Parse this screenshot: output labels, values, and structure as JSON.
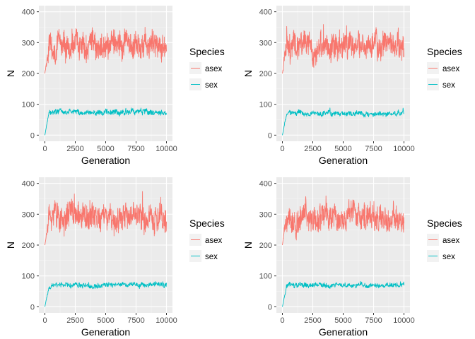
{
  "chart_data": [
    {
      "type": "line",
      "xlabel": "Generation",
      "ylabel": "N",
      "xlim": [
        0,
        10000
      ],
      "ylim": [
        0,
        400
      ],
      "xticks": [
        0,
        2500,
        5000,
        7500,
        10000
      ],
      "xtick_labels": [
        "0",
        "2500",
        "5000",
        "7500",
        "10000"
      ],
      "yticks": [
        0,
        100,
        200,
        300,
        400
      ],
      "ytick_labels": [
        "0",
        "100",
        "200",
        "300",
        "400"
      ],
      "grid": true,
      "legend": {
        "title": "Species",
        "position": "right"
      },
      "series": [
        {
          "name": "asex",
          "color": "#F8766D",
          "start": 200,
          "mean": 288,
          "amplitude": 30,
          "max": 398,
          "min": 205
        },
        {
          "name": "sex",
          "color": "#00BFC4",
          "start": 0,
          "mean": 75,
          "amplitude": 7,
          "max": 93,
          "min": 52
        }
      ]
    },
    {
      "type": "line",
      "xlabel": "Generation",
      "ylabel": "N",
      "xlim": [
        0,
        10000
      ],
      "ylim": [
        0,
        400
      ],
      "xticks": [
        0,
        2500,
        5000,
        7500,
        10000
      ],
      "xtick_labels": [
        "0",
        "2500",
        "5000",
        "7500",
        "10000"
      ],
      "yticks": [
        0,
        100,
        200,
        300,
        400
      ],
      "ytick_labels": [
        "0",
        "100",
        "200",
        "300",
        "400"
      ],
      "grid": true,
      "legend": {
        "title": "Species",
        "position": "right"
      },
      "series": [
        {
          "name": "asex",
          "color": "#F8766D",
          "start": 200,
          "mean": 288,
          "amplitude": 30,
          "max": 398,
          "min": 205
        },
        {
          "name": "sex",
          "color": "#00BFC4",
          "start": 0,
          "mean": 70,
          "amplitude": 6,
          "max": 90,
          "min": 55
        }
      ]
    },
    {
      "type": "line",
      "xlabel": "Generation",
      "ylabel": "N",
      "xlim": [
        0,
        10000
      ],
      "ylim": [
        0,
        400
      ],
      "xticks": [
        0,
        2500,
        5000,
        7500,
        10000
      ],
      "xtick_labels": [
        "0",
        "2500",
        "5000",
        "7500",
        "10000"
      ],
      "yticks": [
        0,
        100,
        200,
        300,
        400
      ],
      "ytick_labels": [
        "0",
        "100",
        "200",
        "300",
        "400"
      ],
      "grid": true,
      "legend": {
        "title": "Species",
        "position": "right"
      },
      "series": [
        {
          "name": "asex",
          "color": "#F8766D",
          "start": 200,
          "mean": 290,
          "amplitude": 30,
          "max": 395,
          "min": 210
        },
        {
          "name": "sex",
          "color": "#00BFC4",
          "start": 0,
          "mean": 70,
          "amplitude": 6,
          "max": 88,
          "min": 55
        }
      ]
    },
    {
      "type": "line",
      "xlabel": "Generation",
      "ylabel": "N",
      "xlim": [
        0,
        10000
      ],
      "ylim": [
        0,
        400
      ],
      "xticks": [
        0,
        2500,
        5000,
        7500,
        10000
      ],
      "xtick_labels": [
        "0",
        "2500",
        "5000",
        "7500",
        "10000"
      ],
      "yticks": [
        0,
        100,
        200,
        300,
        400
      ],
      "ytick_labels": [
        "0",
        "100",
        "200",
        "300",
        "400"
      ],
      "grid": true,
      "legend": {
        "title": "Species",
        "position": "right"
      },
      "series": [
        {
          "name": "asex",
          "color": "#F8766D",
          "start": 200,
          "mean": 288,
          "amplitude": 30,
          "max": 405,
          "min": 205
        },
        {
          "name": "sex",
          "color": "#00BFC4",
          "start": 0,
          "mean": 70,
          "amplitude": 6,
          "max": 90,
          "min": 52
        }
      ]
    }
  ],
  "style": {
    "panel_background": "#EBEBEB",
    "grid_major": "#FFFFFF",
    "tick_text": "#4D4D4D"
  }
}
